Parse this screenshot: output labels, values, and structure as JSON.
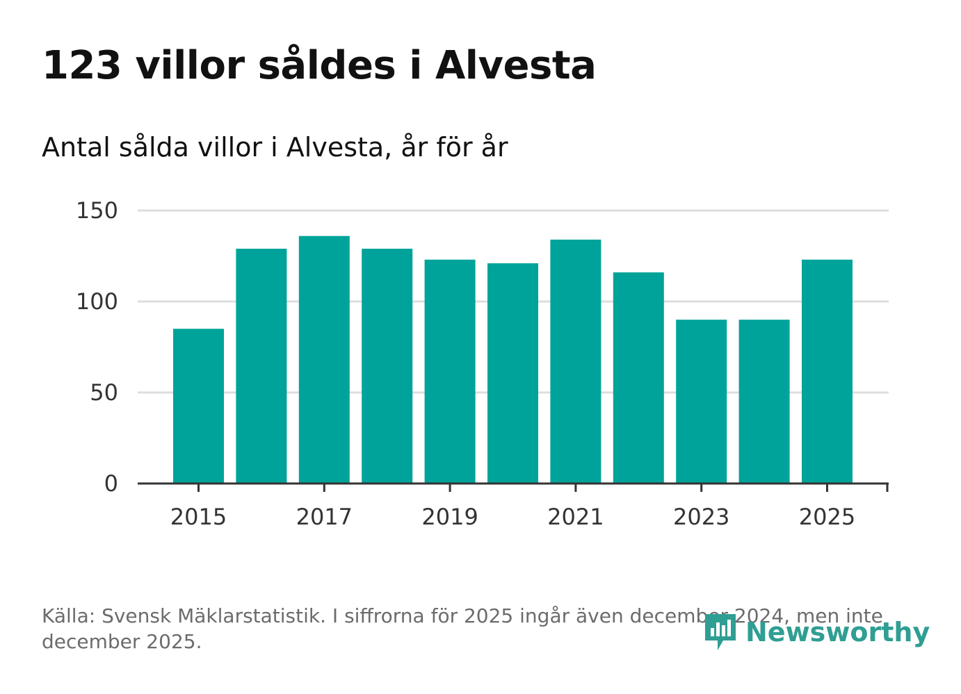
{
  "header": {
    "title": "123 villor såldes i Alvesta",
    "subtitle": "Antal sålda villor i Alvesta, år för år"
  },
  "footer": {
    "source": "Källa: Svensk Mäklarstatistik. I siffrorna för 2025 ingår även december 2024, men inte december 2025.",
    "brand": "Newsworthy"
  },
  "colors": {
    "bar": "#00a39a",
    "grid": "#dddddd",
    "axis": "#333333",
    "brand": "#2f9e93"
  },
  "chart_data": {
    "type": "bar",
    "title": "Antal sålda villor i Alvesta, år för år",
    "xlabel": "",
    "ylabel": "",
    "categories": [
      "2015",
      "2016",
      "2017",
      "2018",
      "2019",
      "2020",
      "2021",
      "2022",
      "2023",
      "2024",
      "2025"
    ],
    "values": [
      85,
      129,
      136,
      129,
      123,
      121,
      134,
      116,
      90,
      90,
      123
    ],
    "ylim": [
      0,
      150
    ],
    "yticks": [
      0,
      50,
      100,
      150
    ],
    "xtick_labels": [
      "2015",
      "2017",
      "2019",
      "2021",
      "2023",
      "2025"
    ],
    "grid": true,
    "legend": "none"
  }
}
